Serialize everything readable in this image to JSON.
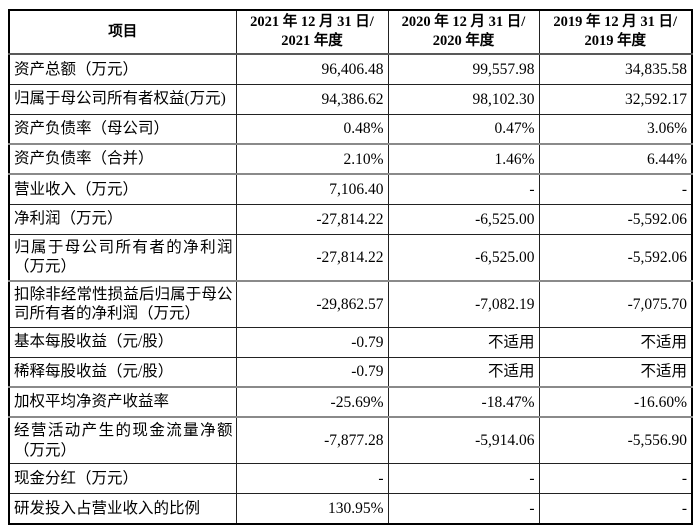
{
  "colors": {
    "text": "#000000",
    "background": "#ffffff",
    "outer_border": "#000000",
    "inner_border": "#222222",
    "header_rule": "#595959",
    "section_separator": "#8a8a8a"
  },
  "table": {
    "header": {
      "item_col": "项目",
      "periods": [
        {
          "line1": "2021 年 12 月 31 日/",
          "line2": "2021 年度"
        },
        {
          "line1": "2020 年 12 月 31 日/",
          "line2": "2020 年度"
        },
        {
          "line1": "2019 年 12 月 31 日/",
          "line2": "2019 年度"
        }
      ]
    },
    "rows": [
      {
        "label": "资产总额（万元）",
        "values": [
          "96,406.48",
          "99,557.98",
          "34,835.58"
        ],
        "thick_top": false
      },
      {
        "label": "归属于母公司所有者权益(万元)",
        "values": [
          "94,386.62",
          "98,102.30",
          "32,592.17"
        ],
        "thick_top": false
      },
      {
        "label": "资产负债率（母公司）",
        "values": [
          "0.48%",
          "0.47%",
          "3.06%"
        ],
        "thick_top": false
      },
      {
        "label": "资产负债率（合并）",
        "values": [
          "2.10%",
          "1.46%",
          "6.44%"
        ],
        "thick_top": true
      },
      {
        "label": "营业收入（万元）",
        "values": [
          "7,106.40",
          "-",
          "-"
        ],
        "thick_top": true
      },
      {
        "label": "净利润（万元）",
        "values": [
          "-27,814.22",
          "-6,525.00",
          "-5,592.06"
        ],
        "thick_top": false
      },
      {
        "label": "归属于母公司所有者的净利润（万元）",
        "values": [
          "-27,814.22",
          "-6,525.00",
          "-5,592.06"
        ],
        "thick_top": false
      },
      {
        "label": "扣除非经常性损益后归属于母公司所有者的净利润（万元）",
        "values": [
          "-29,862.57",
          "-7,082.19",
          "-7,075.70"
        ],
        "thick_top": true
      },
      {
        "label": "基本每股收益（元/股）",
        "values": [
          "-0.79",
          "不适用",
          "不适用"
        ],
        "thick_top": false
      },
      {
        "label": "稀释每股收益（元/股）",
        "values": [
          "-0.79",
          "不适用",
          "不适用"
        ],
        "thick_top": false
      },
      {
        "label": "加权平均净资产收益率",
        "values": [
          "-25.69%",
          "-18.47%",
          "-16.60%"
        ],
        "thick_top": true
      },
      {
        "label": "经营活动产生的现金流量净额（万元）",
        "values": [
          "-7,877.28",
          "-5,914.06",
          "-5,556.90"
        ],
        "thick_top": true
      },
      {
        "label": "现金分红（万元）",
        "values": [
          "-",
          "-",
          "-"
        ],
        "thick_top": false
      },
      {
        "label": "研发投入占营业收入的比例",
        "values": [
          "130.95%",
          "-",
          "-"
        ],
        "thick_top": false
      }
    ]
  }
}
